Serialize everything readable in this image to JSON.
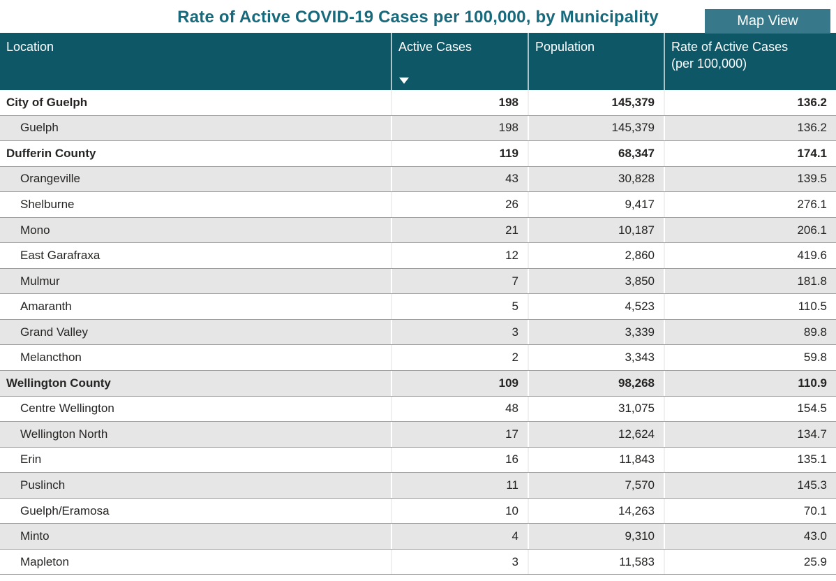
{
  "page": {
    "title": "Rate of Active COVID-19 Cases per 100,000, by Municipality",
    "map_view_button_label": "Map View"
  },
  "colors": {
    "table_header_bg": "#0d5767",
    "title_text": "#17697c",
    "map_view_button_bg": "#37798a",
    "map_view_button_text": "#ffffff",
    "row_bg": "#ffffff",
    "row_alt_bg": "#e6e6e6",
    "row_border": "#9e9e9e",
    "body_text": "#252423"
  },
  "icons": {
    "sort_descending": "sort-descending-icon"
  },
  "table": {
    "columns": {
      "location": {
        "label": "Location"
      },
      "active_cases": {
        "label": "Active Cases",
        "sort": "descending"
      },
      "population": {
        "label": "Population"
      },
      "rate": {
        "label": "Rate of Active Cases",
        "sublabel": "(per 100,000)"
      }
    },
    "rows": [
      {
        "location": "City of Guelph",
        "active_cases": "198",
        "population": "145,379",
        "rate": "136.2",
        "bold": true,
        "indent": false
      },
      {
        "location": "Guelph",
        "active_cases": "198",
        "population": "145,379",
        "rate": "136.2",
        "bold": false,
        "indent": true
      },
      {
        "location": "Dufferin County",
        "active_cases": "119",
        "population": "68,347",
        "rate": "174.1",
        "bold": true,
        "indent": false
      },
      {
        "location": "Orangeville",
        "active_cases": "43",
        "population": "30,828",
        "rate": "139.5",
        "bold": false,
        "indent": true
      },
      {
        "location": "Shelburne",
        "active_cases": "26",
        "population": "9,417",
        "rate": "276.1",
        "bold": false,
        "indent": true
      },
      {
        "location": "Mono",
        "active_cases": "21",
        "population": "10,187",
        "rate": "206.1",
        "bold": false,
        "indent": true
      },
      {
        "location": "East Garafraxa",
        "active_cases": "12",
        "population": "2,860",
        "rate": "419.6",
        "bold": false,
        "indent": true
      },
      {
        "location": "Mulmur",
        "active_cases": "7",
        "population": "3,850",
        "rate": "181.8",
        "bold": false,
        "indent": true
      },
      {
        "location": "Amaranth",
        "active_cases": "5",
        "population": "4,523",
        "rate": "110.5",
        "bold": false,
        "indent": true
      },
      {
        "location": "Grand Valley",
        "active_cases": "3",
        "population": "3,339",
        "rate": "89.8",
        "bold": false,
        "indent": true
      },
      {
        "location": "Melancthon",
        "active_cases": "2",
        "population": "3,343",
        "rate": "59.8",
        "bold": false,
        "indent": true
      },
      {
        "location": "Wellington County",
        "active_cases": "109",
        "population": "98,268",
        "rate": "110.9",
        "bold": true,
        "indent": false
      },
      {
        "location": "Centre Wellington",
        "active_cases": "48",
        "population": "31,075",
        "rate": "154.5",
        "bold": false,
        "indent": true
      },
      {
        "location": "Wellington North",
        "active_cases": "17",
        "population": "12,624",
        "rate": "134.7",
        "bold": false,
        "indent": true
      },
      {
        "location": "Erin",
        "active_cases": "16",
        "population": "11,843",
        "rate": "135.1",
        "bold": false,
        "indent": true
      },
      {
        "location": "Puslinch",
        "active_cases": "11",
        "population": "7,570",
        "rate": "145.3",
        "bold": false,
        "indent": true
      },
      {
        "location": "Guelph/Eramosa",
        "active_cases": "10",
        "population": "14,263",
        "rate": "70.1",
        "bold": false,
        "indent": true
      },
      {
        "location": "Minto",
        "active_cases": "4",
        "population": "9,310",
        "rate": "43.0",
        "bold": false,
        "indent": true
      },
      {
        "location": "Mapleton",
        "active_cases": "3",
        "population": "11,583",
        "rate": "25.9",
        "bold": false,
        "indent": true
      }
    ]
  }
}
